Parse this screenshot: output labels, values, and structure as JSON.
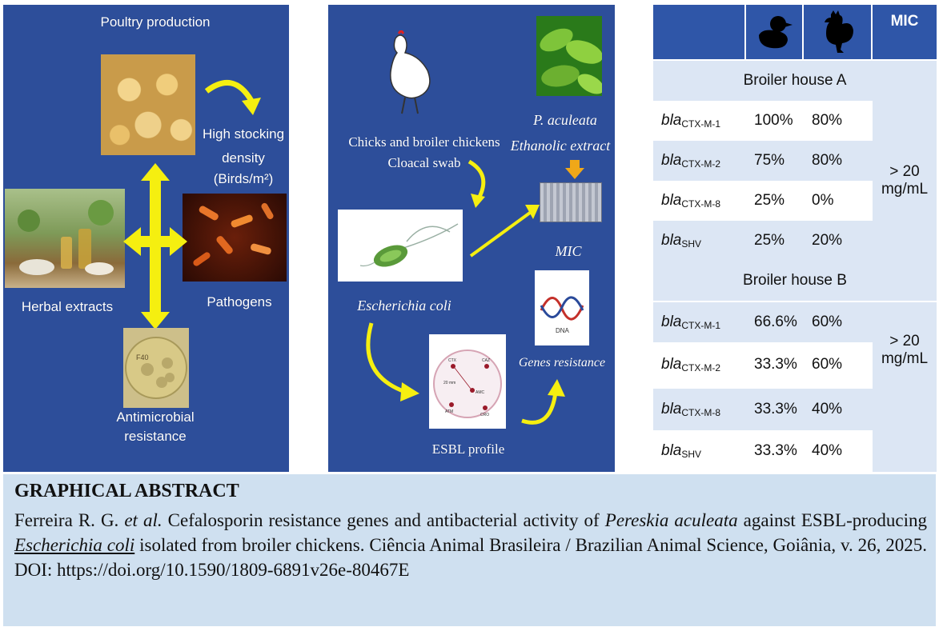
{
  "left_panel": {
    "title": "Poultry production",
    "stocking_line1": "High stocking",
    "stocking_line2": "density",
    "stocking_line3": "(Birds/m²)",
    "pathogens": "Pathogens",
    "herbal": "Herbal extracts",
    "amr_line1": "Antimicrobial",
    "amr_line2": "resistance",
    "plate_label": "F40"
  },
  "middle_panel": {
    "chickens_line1": "Chicks and broiler chickens",
    "chickens_line2": "Cloacal swab",
    "plant_line1": "P. aculeata",
    "plant_line2": "Ethanolic extract",
    "mic": "MIC",
    "ecoli": "Escherichia coli",
    "dna": "DNA",
    "genes": "Genes resistance",
    "esbl": "ESBL profile",
    "disk_labels": [
      "CTX",
      "CAZ",
      "20 mm",
      "AMC",
      "ATM",
      "CRO"
    ]
  },
  "table": {
    "mic_header": "MIC",
    "house_a": "Broiler house A",
    "house_b": "Broiler house B",
    "gene_prefix": "bla",
    "rows_a": [
      {
        "sub": "CTX-M-1",
        "v1": "100%",
        "v2": "80%"
      },
      {
        "sub": "CTX-M-2",
        "v1": "75%",
        "v2": "80%"
      },
      {
        "sub": "CTX-M-8",
        "v1": "25%",
        "v2": "0%"
      },
      {
        "sub": "SHV",
        "v1": "25%",
        "v2": "20%"
      }
    ],
    "rows_b": [
      {
        "sub": "CTX-M-1",
        "v1": "66.6%",
        "v2": "60%"
      },
      {
        "sub": "CTX-M-2",
        "v1": "33.3%",
        "v2": "60%"
      },
      {
        "sub": "CTX-M-8",
        "v1": "33.3%",
        "v2": "40%"
      },
      {
        "sub": "SHV",
        "v1": "33.3%",
        "v2": "40%"
      }
    ],
    "mic_a_line1": "> 20",
    "mic_a_line2": "mg/mL",
    "mic_b_line1": "> 20",
    "mic_b_line2": "mg/mL"
  },
  "footer": {
    "heading": "GRAPHICAL ABSTRACT",
    "authors": "Ferreira R. G. ",
    "etal": "et al.",
    "t1": " Cefalosporin resistance genes and antibacterial activity of ",
    "species": "Pereskia aculeata",
    "t2": " against ESBL-producing ",
    "bacterium": "Escherichia coli",
    "t3": " isolated from broiler chickens. Ciência Animal Brasileira / Brazilian Animal Science, Goiânia, v. 26, 2025. DOI: https://doi.org/10.1590/1809-6891v26e-80467E"
  },
  "colors": {
    "panel": "#2d4e9a",
    "table_header": "#2f56a8",
    "table_light": "#dce6f4",
    "footer": "#cfe0f0",
    "arrow": "#f5ef10"
  },
  "icons": [
    "chick-icon",
    "rooster-icon",
    "hen-icon",
    "bacterium-icon",
    "dna-icon",
    "arrow-icon"
  ]
}
